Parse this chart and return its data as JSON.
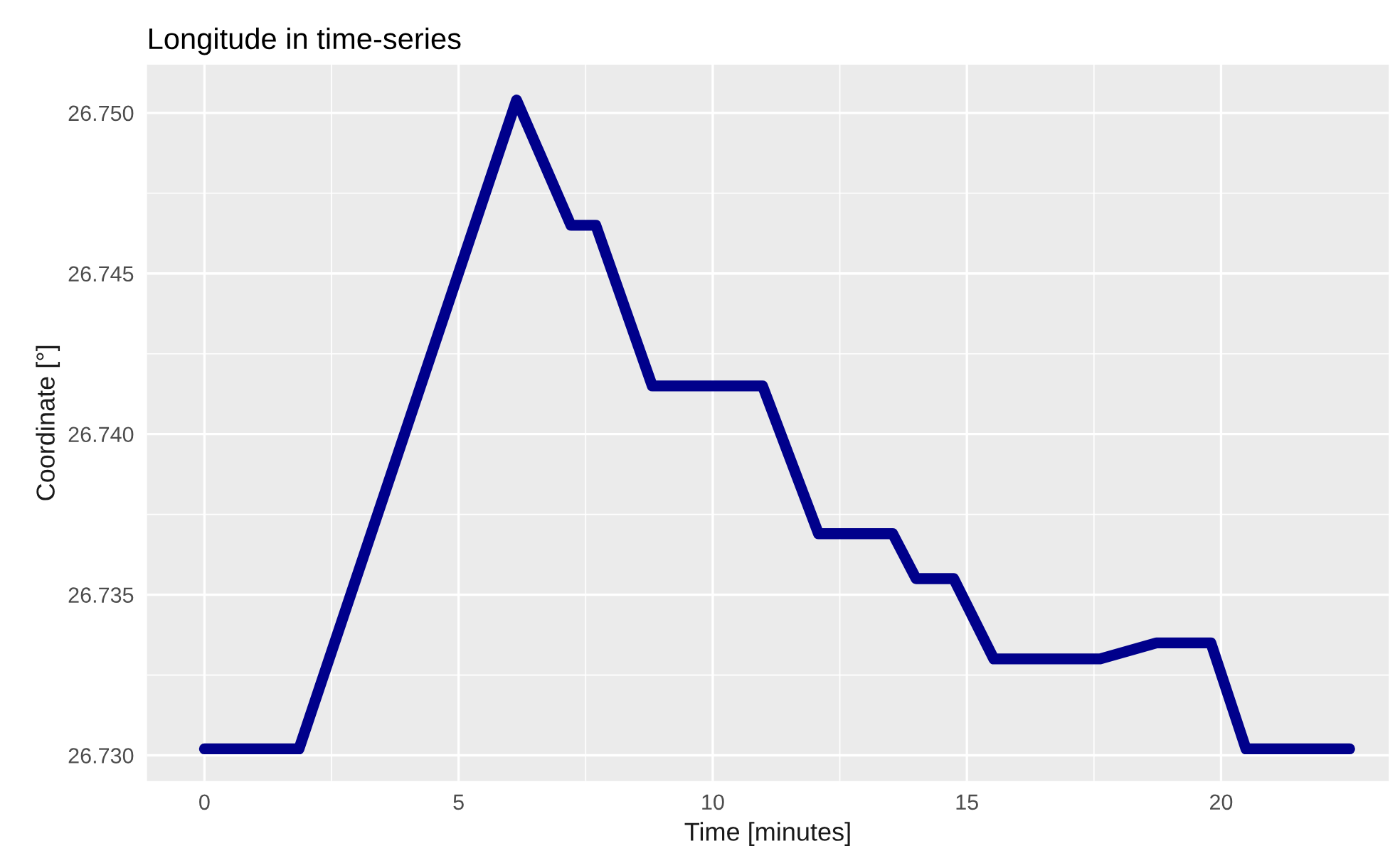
{
  "chart_data": {
    "type": "line",
    "title": "Longitude in time-series",
    "xlabel": "Time [minutes]",
    "ylabel": "Coordinate [°]",
    "x": [
      0,
      1.86,
      6.14,
      7.21,
      7.7,
      8.81,
      10.98,
      12.08,
      13.54,
      14.0,
      14.74,
      15.53,
      17.62,
      18.73,
      19.8,
      20.49,
      22.53
    ],
    "series": [
      {
        "color": "#00008b",
        "values": [
          26.7302,
          26.7302,
          26.7504,
          26.7465,
          26.7465,
          26.7415,
          26.7415,
          26.7369,
          26.7369,
          26.7355,
          26.7355,
          26.733,
          26.733,
          26.7335,
          26.7335,
          26.7302,
          26.7302
        ]
      }
    ],
    "xlim": [
      -1.13,
      23.3
    ],
    "ylim": [
      26.7292,
      26.7515
    ],
    "xticks": [
      0,
      5,
      10,
      15,
      20
    ],
    "yticks": [
      {
        "value": 26.73,
        "label": "26.730"
      },
      {
        "value": 26.735,
        "label": "26.735"
      },
      {
        "value": 26.74,
        "label": "26.740"
      },
      {
        "value": 26.745,
        "label": "26.745"
      },
      {
        "value": 26.75,
        "label": "26.750"
      }
    ],
    "grid": true,
    "legend": false,
    "marker": "none",
    "line_style": "solid"
  }
}
